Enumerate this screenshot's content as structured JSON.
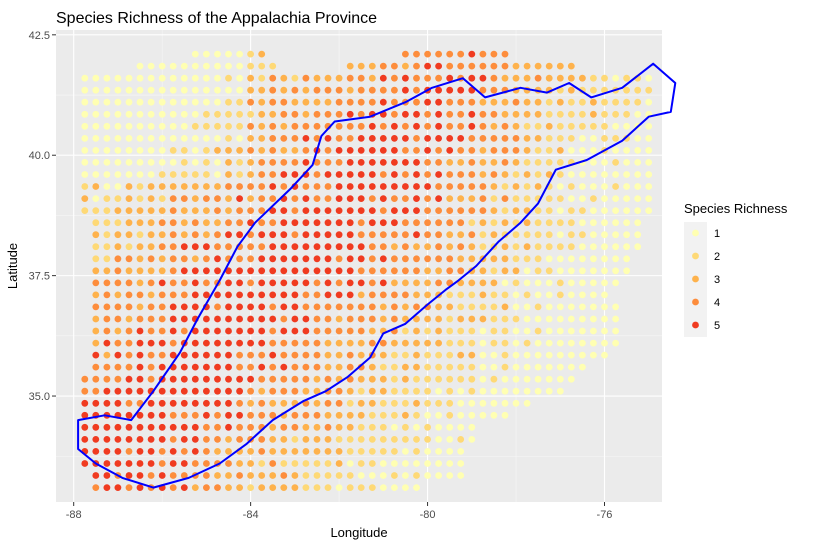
{
  "chart_data": {
    "type": "scatter",
    "title": "Species Richness of the Appalachia Province",
    "xlabel": "Longitude",
    "ylabel": "Latitude",
    "xlim": [
      -88.4,
      -74.7
    ],
    "ylim": [
      32.8,
      42.6
    ],
    "x_ticks": [
      -88,
      -84,
      -80,
      -76
    ],
    "x_tick_labels": [
      "-88",
      "-84",
      "-80",
      "-76"
    ],
    "y_ticks": [
      35.0,
      37.5,
      40.0,
      42.5
    ],
    "y_tick_labels": [
      "35.0",
      "37.5",
      "40.0",
      "42.5"
    ],
    "grid": true,
    "legend": {
      "title": "Species Richness",
      "placement": "right",
      "entries": [
        {
          "label": "1",
          "color": "#ffffb2"
        },
        {
          "label": "2",
          "color": "#fed976"
        },
        {
          "label": "3",
          "color": "#feb24c"
        },
        {
          "label": "4",
          "color": "#fd8d3c"
        },
        {
          "label": "5",
          "color": "#f03b20"
        }
      ]
    },
    "point_grid": {
      "spacing_deg": 0.25,
      "region_polygon": [
        [
          -87.8,
          41.6
        ],
        [
          -87.8,
          39.5
        ],
        [
          -87.6,
          36.2
        ],
        [
          -87.9,
          34.6
        ],
        [
          -87.7,
          33.0
        ],
        [
          -84.5,
          33.0
        ],
        [
          -80.8,
          33.0
        ],
        [
          -79.3,
          33.2
        ],
        [
          -78.8,
          34.4
        ],
        [
          -76.8,
          35.1
        ],
        [
          -75.5,
          36.3
        ],
        [
          -75.8,
          37.1
        ],
        [
          -75.3,
          37.7
        ],
        [
          -74.9,
          39.0
        ],
        [
          -74.3,
          39.6
        ],
        [
          -74.2,
          40.7
        ],
        [
          -74.4,
          41.6
        ],
        [
          -76.2,
          41.8
        ],
        [
          -78.2,
          42.1
        ],
        [
          -80.5,
          42.1
        ],
        [
          -83.0,
          41.6
        ],
        [
          -84.0,
          42.3
        ],
        [
          -86.0,
          42.0
        ],
        [
          -87.8,
          41.6
        ]
      ],
      "high_richness_axis": [
        [
          -87.8,
          33.2
        ],
        [
          -80.0,
          40.8
        ]
      ],
      "values": [
        1,
        2,
        3,
        4,
        5
      ]
    },
    "province_boundary": {
      "color": "#0000ff",
      "points": [
        [
          -87.9,
          34.5
        ],
        [
          -87.3,
          34.6
        ],
        [
          -86.7,
          34.5
        ],
        [
          -86.2,
          35.1
        ],
        [
          -85.6,
          35.9
        ],
        [
          -85.2,
          36.6
        ],
        [
          -84.7,
          37.4
        ],
        [
          -84.3,
          38.1
        ],
        [
          -83.9,
          38.6
        ],
        [
          -83.1,
          39.3
        ],
        [
          -82.6,
          39.8
        ],
        [
          -82.4,
          40.4
        ],
        [
          -82.1,
          40.7
        ],
        [
          -81.3,
          40.8
        ],
        [
          -80.5,
          41.1
        ],
        [
          -79.9,
          41.4
        ],
        [
          -79.2,
          41.6
        ],
        [
          -78.7,
          41.2
        ],
        [
          -77.9,
          41.4
        ],
        [
          -77.3,
          41.3
        ],
        [
          -76.8,
          41.5
        ],
        [
          -76.3,
          41.2
        ],
        [
          -75.6,
          41.4
        ],
        [
          -74.9,
          41.9
        ],
        [
          -74.4,
          41.5
        ],
        [
          -74.5,
          40.9
        ],
        [
          -75.0,
          40.8
        ],
        [
          -75.6,
          40.3
        ],
        [
          -76.4,
          39.9
        ],
        [
          -77.1,
          39.7
        ],
        [
          -77.5,
          39.0
        ],
        [
          -77.9,
          38.6
        ],
        [
          -78.4,
          38.2
        ],
        [
          -78.9,
          37.7
        ],
        [
          -79.3,
          37.4
        ],
        [
          -79.6,
          37.2
        ],
        [
          -80.0,
          36.9
        ],
        [
          -80.5,
          36.5
        ],
        [
          -81.0,
          36.3
        ],
        [
          -81.3,
          35.8
        ],
        [
          -81.8,
          35.4
        ],
        [
          -82.3,
          35.1
        ],
        [
          -82.8,
          34.9
        ],
        [
          -83.5,
          34.5
        ],
        [
          -84.1,
          34.0
        ],
        [
          -84.7,
          33.6
        ],
        [
          -85.4,
          33.3
        ],
        [
          -86.2,
          33.1
        ],
        [
          -86.9,
          33.3
        ],
        [
          -87.5,
          33.6
        ],
        [
          -87.9,
          33.9
        ],
        [
          -87.9,
          34.5
        ]
      ]
    }
  }
}
